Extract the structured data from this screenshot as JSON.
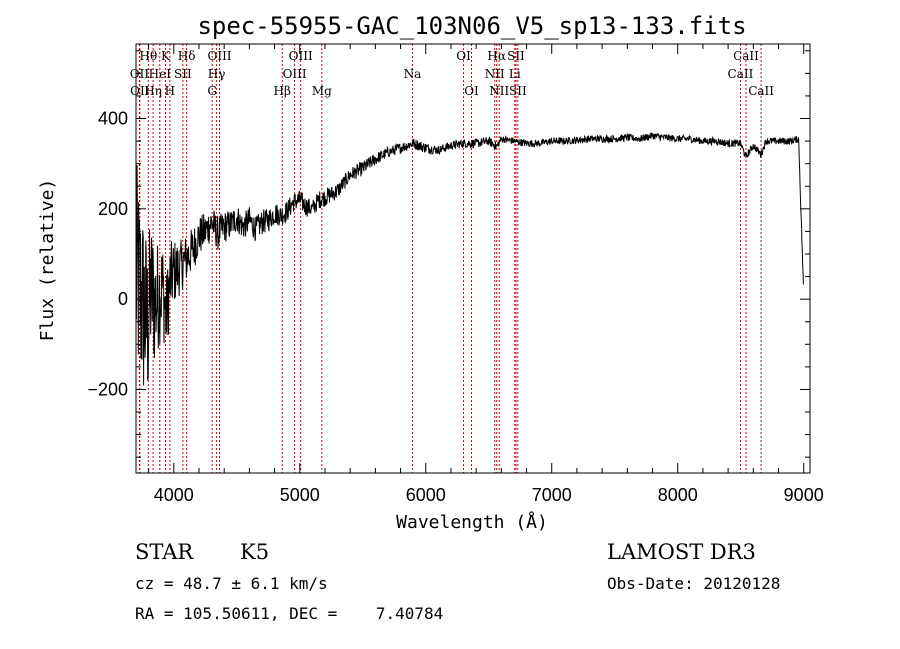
{
  "chart_data": {
    "type": "line",
    "title": "spec-55955-GAC_103N06_V5_sp13-133.fits",
    "xlabel": "Wavelength (Å)",
    "ylabel": "Flux (relative)",
    "xlim": [
      3700,
      9050
    ],
    "ylim": [
      -385,
      565
    ],
    "x_ticks": [
      4000,
      5000,
      6000,
      7000,
      8000,
      9000
    ],
    "y_ticks": [
      -200,
      0,
      200,
      400
    ],
    "x_minor_step": 200,
    "y_minor_step": 50,
    "series": [
      {
        "name": "flux",
        "x": [
          3700,
          3730,
          3760,
          3790,
          3820,
          3850,
          3880,
          3910,
          3940,
          3970,
          4000,
          4050,
          4100,
          4150,
          4200,
          4250,
          4300,
          4350,
          4400,
          4450,
          4500,
          4550,
          4600,
          4650,
          4700,
          4750,
          4800,
          4850,
          4900,
          4950,
          5000,
          5050,
          5100,
          5150,
          5200,
          5300,
          5400,
          5500,
          5600,
          5700,
          5800,
          5900,
          6000,
          6100,
          6200,
          6300,
          6400,
          6500,
          6563,
          6600,
          6700,
          6800,
          6900,
          7000,
          7100,
          7200,
          7300,
          7400,
          7500,
          7600,
          7700,
          7800,
          7900,
          8000,
          8100,
          8200,
          8300,
          8400,
          8498,
          8542,
          8600,
          8662,
          8700,
          8800,
          8900,
          8960,
          8980,
          9000
        ],
        "y": [
          60,
          20,
          -20,
          -60,
          20,
          -10,
          10,
          30,
          -40,
          40,
          60,
          70,
          90,
          110,
          140,
          150,
          170,
          145,
          160,
          165,
          180,
          160,
          175,
          155,
          170,
          175,
          190,
          185,
          195,
          215,
          220,
          205,
          200,
          220,
          225,
          240,
          275,
          290,
          310,
          325,
          335,
          345,
          335,
          330,
          340,
          345,
          345,
          350,
          338,
          355,
          350,
          345,
          345,
          350,
          350,
          352,
          355,
          355,
          355,
          358,
          355,
          362,
          358,
          355,
          355,
          350,
          350,
          345,
          345,
          315,
          340,
          320,
          350,
          350,
          350,
          355,
          180,
          10
        ],
        "noise": [
          260,
          230,
          220,
          200,
          160,
          150,
          120,
          110,
          95,
          85,
          75,
          60,
          55,
          50,
          45,
          42,
          40,
          38,
          36,
          34,
          32,
          30,
          30,
          28,
          28,
          26,
          26,
          24,
          24,
          22,
          22,
          22,
          20,
          20,
          20,
          18,
          16,
          16,
          14,
          12,
          12,
          12,
          12,
          10,
          10,
          10,
          10,
          10,
          10,
          8,
          8,
          8,
          8,
          8,
          8,
          8,
          8,
          8,
          8,
          8,
          8,
          8,
          8,
          8,
          8,
          8,
          8,
          8,
          8,
          8,
          8,
          8,
          8,
          8,
          8,
          8,
          8,
          8
        ]
      }
    ],
    "spectral_lines": [
      {
        "label": "Hθ",
        "wavelength": 3798,
        "row": 1
      },
      {
        "label": "OII",
        "wavelength": 3727,
        "row": 2
      },
      {
        "label": "OII",
        "wavelength": 3730,
        "row": 3
      },
      {
        "label": "Hη",
        "wavelength": 3836,
        "row": 3
      },
      {
        "label": "HeI",
        "wavelength": 3889,
        "row": 2
      },
      {
        "label": "K",
        "wavelength": 3934,
        "row": 1
      },
      {
        "label": "H",
        "wavelength": 3969,
        "row": 3
      },
      {
        "label": "SII",
        "wavelength": 4072,
        "row": 2
      },
      {
        "label": "Hδ",
        "wavelength": 4102,
        "row": 1
      },
      {
        "label": "G",
        "wavelength": 4305,
        "row": 3
      },
      {
        "label": "Hγ",
        "wavelength": 4340,
        "row": 2
      },
      {
        "label": "OIII",
        "wavelength": 4363,
        "row": 1
      },
      {
        "label": "Hβ",
        "wavelength": 4861,
        "row": 3
      },
      {
        "label": "OIII",
        "wavelength": 4959,
        "row": 2
      },
      {
        "label": "OIII",
        "wavelength": 5007,
        "row": 1
      },
      {
        "label": "Mg",
        "wavelength": 5175,
        "row": 3
      },
      {
        "label": "Na",
        "wavelength": 5894,
        "row": 2
      },
      {
        "label": "OI",
        "wavelength": 6300,
        "row": 1
      },
      {
        "label": "OI",
        "wavelength": 6363,
        "row": 3
      },
      {
        "label": "NII",
        "wavelength": 6548,
        "row": 2
      },
      {
        "label": "Hα",
        "wavelength": 6563,
        "row": 1
      },
      {
        "label": "NII",
        "wavelength": 6583,
        "row": 3
      },
      {
        "label": "Li",
        "wavelength": 6707,
        "row": 2
      },
      {
        "label": "SII",
        "wavelength": 6716,
        "row": 1
      },
      {
        "label": "SII",
        "wavelength": 6731,
        "row": 3
      },
      {
        "label": "CaII",
        "wavelength": 8498,
        "row": 2
      },
      {
        "label": "CaII",
        "wavelength": 8542,
        "row": 1
      },
      {
        "label": "CaII",
        "wavelength": 8662,
        "row": 3
      }
    ]
  },
  "info": {
    "class": "STAR",
    "subclass": "K5",
    "survey": "LAMOST DR3",
    "redshift": "cz = 48.7 ± 6.1 km/s",
    "obs_date": "Obs-Date: 20120128",
    "coords": "RA = 105.50611, DEC =    7.40784"
  }
}
